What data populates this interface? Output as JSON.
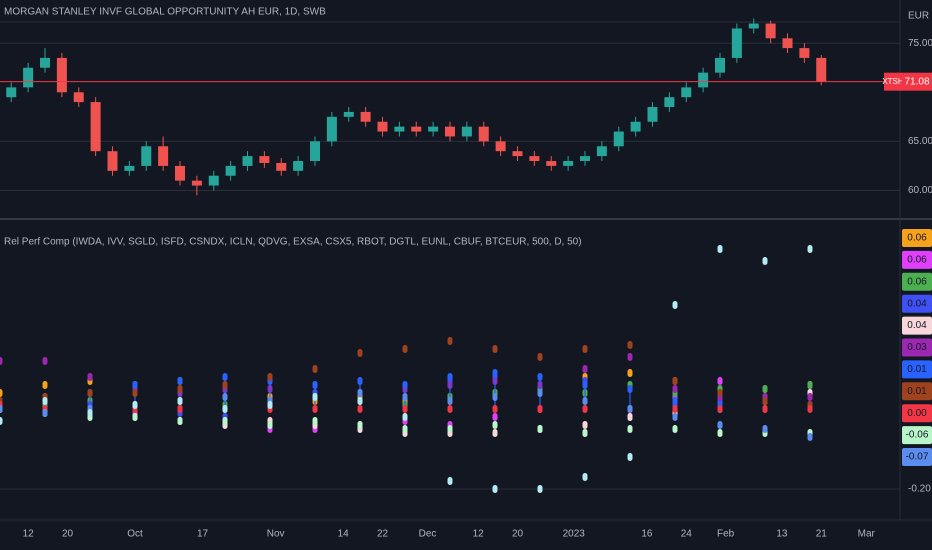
{
  "chart_data": [
    {
      "type": "candlestick",
      "title": "MORGAN STANLEY INVF GLOBAL OPPORTUNITY AH EUR, 1D, SWB",
      "currency": "EUR",
      "symbol_tag": "XTSH",
      "last_price": {
        "value": 71.08,
        "label": "71.08"
      },
      "up_color": "#26a69a",
      "down_color": "#ef5350",
      "last_price_color": "#f23645",
      "grid": true,
      "xlim": [
        0,
        160
      ],
      "xticks": [
        {
          "value": 5,
          "label": "12"
        },
        {
          "value": 12,
          "label": "20"
        },
        {
          "value": 24,
          "label": "Oct"
        },
        {
          "value": 36,
          "label": "17"
        },
        {
          "value": 49,
          "label": "Nov"
        },
        {
          "value": 61,
          "label": "14"
        },
        {
          "value": 68,
          "label": "22"
        },
        {
          "value": 76,
          "label": "Dec"
        },
        {
          "value": 85,
          "label": "12"
        },
        {
          "value": 92,
          "label": "20"
        },
        {
          "value": 102,
          "label": "2023"
        },
        {
          "value": 115,
          "label": "16"
        },
        {
          "value": 122,
          "label": "24"
        },
        {
          "value": 129,
          "label": "Feb"
        },
        {
          "value": 139,
          "label": "13"
        },
        {
          "value": 146,
          "label": "21"
        },
        {
          "value": 154,
          "label": "Mar"
        }
      ],
      "ylim": [
        57.5,
        79.4
      ],
      "yticks": [
        {
          "value": 75,
          "label": "75.00"
        },
        {
          "value": 65,
          "label": "65.00"
        },
        {
          "value": 60,
          "label": "60.00"
        }
      ],
      "x": [
        2,
        5,
        8,
        11,
        14,
        17,
        20,
        23,
        26,
        29,
        32,
        35,
        38,
        41,
        44,
        47,
        50,
        53,
        56,
        59,
        62,
        65,
        68,
        71,
        74,
        77,
        80,
        83,
        86,
        89,
        92,
        95,
        98,
        101,
        104,
        107,
        110,
        113,
        116,
        119,
        122,
        125,
        128,
        131,
        134,
        137,
        140,
        143,
        146
      ],
      "open": [
        69.5,
        70.5,
        72.5,
        73.5,
        70,
        69,
        64,
        62,
        62.5,
        64.5,
        62.5,
        61,
        60.5,
        61.5,
        62.5,
        63.5,
        62.8,
        62,
        63,
        65,
        67.5,
        68,
        67,
        66,
        66.5,
        66,
        66.5,
        65.5,
        66.5,
        65,
        64,
        63.5,
        63,
        62.5,
        63,
        63.5,
        64.5,
        66,
        67,
        68.5,
        69.5,
        70.5,
        72,
        73.5,
        76.5,
        77,
        75.5,
        74.5,
        73.5
      ],
      "high": [
        71,
        73,
        74.5,
        74,
        70.5,
        69.5,
        64.5,
        63,
        65,
        65.5,
        63,
        61.5,
        62,
        63,
        64,
        64,
        63.3,
        63.5,
        65.5,
        68,
        68.5,
        68.5,
        67.5,
        67,
        67,
        67,
        67,
        67,
        67,
        65.5,
        64.5,
        64,
        63.5,
        63.5,
        64,
        65,
        66.5,
        67.5,
        69,
        70,
        71,
        72.5,
        74,
        77,
        77.5,
        77.3,
        76,
        75,
        73.8
      ],
      "low": [
        69,
        70,
        72,
        69.5,
        68.5,
        63.5,
        61.5,
        61.5,
        62,
        62,
        60.5,
        59.5,
        60,
        61,
        62,
        62.3,
        61.5,
        61.5,
        62.5,
        64.5,
        67,
        66.5,
        65.5,
        65.5,
        65.5,
        65.5,
        65,
        65,
        64.5,
        63.5,
        63,
        62.5,
        62,
        62,
        62.5,
        63,
        64,
        65.5,
        66.5,
        68,
        69,
        70,
        71.5,
        73,
        76,
        75,
        74,
        73,
        70.7
      ],
      "close": [
        70.5,
        72.5,
        73.5,
        70,
        69,
        64,
        62,
        62.5,
        64.5,
        62.5,
        61,
        60.5,
        61.5,
        62.5,
        63.5,
        62.8,
        62,
        63,
        65,
        67.5,
        68,
        67,
        66,
        66.5,
        66,
        66.5,
        65.5,
        66.5,
        65,
        64,
        63.5,
        63,
        62.5,
        63,
        63.5,
        64.5,
        66,
        67,
        68.5,
        69.5,
        70.5,
        72,
        73.5,
        76.5,
        77,
        75.5,
        74.5,
        73.5,
        71.08
      ]
    },
    {
      "type": "scatter",
      "title": "Rel Perf Comp (IWDA, IVV, SGLD, ISFD, CSNDX, ICLN, QDVG, EXSA, CSX5, RBOT, DGTL, EUNL, CBUF, BTCEUR, 500, D, 50)",
      "grid": true,
      "xlim": [
        0,
        160
      ],
      "ylim": [
        -0.27,
        0.46
      ],
      "yticks": [
        {
          "value": -0.2,
          "label": "-0.20"
        }
      ],
      "x": [
        0,
        8,
        16,
        24,
        32,
        40,
        48,
        56,
        64,
        72,
        80,
        88,
        96,
        104,
        112,
        120,
        128,
        136,
        144
      ],
      "series": [
        {
          "color": "#f7a21b",
          "last_label": "0.06",
          "values": [
            0.04,
            0.06,
            0.07,
            0.06,
            0.07,
            0.05,
            0.03,
            0.02,
            0.03,
            0.02,
            0.03,
            0.04,
            0.05,
            0.08,
            0.09,
            0.07,
            0.02,
            0.02,
            0.06
          ]
        },
        {
          "color": "#e040fb",
          "last_label": "0.06",
          "values": [
            0.0,
            0.02,
            0.01,
            -0.01,
            0.0,
            -0.02,
            -0.05,
            -0.05,
            -0.04,
            -0.03,
            -0.04,
            -0.02,
            0.0,
            -0.06,
            -0.02,
            0.03,
            0.07,
            0.05,
            0.06
          ]
        },
        {
          "color": "#4caf50",
          "last_label": "0.06",
          "values": [
            0.0,
            0.01,
            0.02,
            0.01,
            0.0,
            0.01,
            0.02,
            0.03,
            0.02,
            0.01,
            0.03,
            0.04,
            0.05,
            0.04,
            0.06,
            0.04,
            0.05,
            0.05,
            0.06
          ]
        },
        {
          "color": "#3f51f5",
          "last_label": "0.04",
          "values": [
            0.0,
            -0.01,
            0.01,
            0.0,
            -0.01,
            -0.02,
            0.01,
            0.04,
            0.04,
            0.05,
            0.07,
            0.08,
            0.06,
            0.07,
            0.05,
            0.01,
            0.02,
            0.03,
            0.04
          ]
        },
        {
          "color": "#f8d7da",
          "last_label": "0.04",
          "values": [
            0.0,
            0.0,
            -0.01,
            -0.02,
            -0.03,
            -0.04,
            -0.03,
            -0.04,
            -0.05,
            -0.06,
            -0.06,
            -0.06,
            -0.05,
            -0.04,
            -0.02,
            -0.01,
            0.0,
            0.02,
            0.04
          ]
        },
        {
          "color": "#9c27b0",
          "last_label": "0.03",
          "values": [
            0.12,
            0.12,
            0.08,
            0.05,
            0.04,
            0.05,
            0.05,
            0.06,
            0.04,
            0.05,
            0.06,
            0.07,
            0.06,
            0.1,
            0.13,
            0.05,
            0.03,
            0.03,
            0.03
          ]
        },
        {
          "color": "#2962ff",
          "last_label": "0.01",
          "style": "stem",
          "values": [
            0.02,
            0.03,
            0.04,
            0.06,
            0.07,
            0.08,
            0.07,
            0.06,
            0.07,
            0.06,
            0.08,
            0.09,
            0.08,
            0.06,
            0.05,
            0.02,
            0.01,
            0.0,
            0.01
          ]
        },
        {
          "color": "#a1421f",
          "last_label": "0.01",
          "values": [
            0.02,
            0.03,
            0.04,
            0.04,
            0.05,
            0.06,
            0.08,
            0.1,
            0.14,
            0.15,
            0.17,
            0.15,
            0.13,
            0.15,
            0.16,
            0.07,
            0.04,
            0.02,
            0.01
          ]
        },
        {
          "color": "#f23645",
          "last_label": "0.00",
          "values": [
            0.01,
            0.0,
            0.0,
            0.0,
            0.0,
            0.0,
            0.0,
            0.0,
            0.0,
            0.0,
            0.0,
            0.0,
            0.0,
            0.0,
            0.0,
            0.0,
            0.0,
            0.0,
            0.0
          ]
        },
        {
          "color": "#b9f6ca",
          "last_label": "-0.06",
          "values": [
            0.0,
            -0.01,
            -0.02,
            -0.02,
            -0.03,
            -0.03,
            -0.04,
            -0.03,
            -0.04,
            -0.05,
            -0.05,
            -0.04,
            -0.05,
            -0.06,
            -0.05,
            -0.05,
            -0.06,
            -0.06,
            -0.06
          ]
        },
        {
          "color": "#5b8def",
          "last_label": "-0.07",
          "values": [
            0.0,
            -0.01,
            0.0,
            0.01,
            0.02,
            0.03,
            0.02,
            0.03,
            0.04,
            0.03,
            0.02,
            0.03,
            0.04,
            0.02,
            0.0,
            -0.02,
            -0.04,
            -0.05,
            -0.07
          ]
        },
        {
          "color": "#b2ebf2",
          "values": [
            -0.03,
            0.02,
            -0.01,
            0.01,
            0.02,
            0.0,
            0.01,
            0.03,
            0.02,
            -0.02,
            -0.18,
            -0.2,
            -0.2,
            -0.17,
            -0.12,
            0.26,
            0.4,
            0.37,
            0.4
          ]
        }
      ]
    }
  ]
}
